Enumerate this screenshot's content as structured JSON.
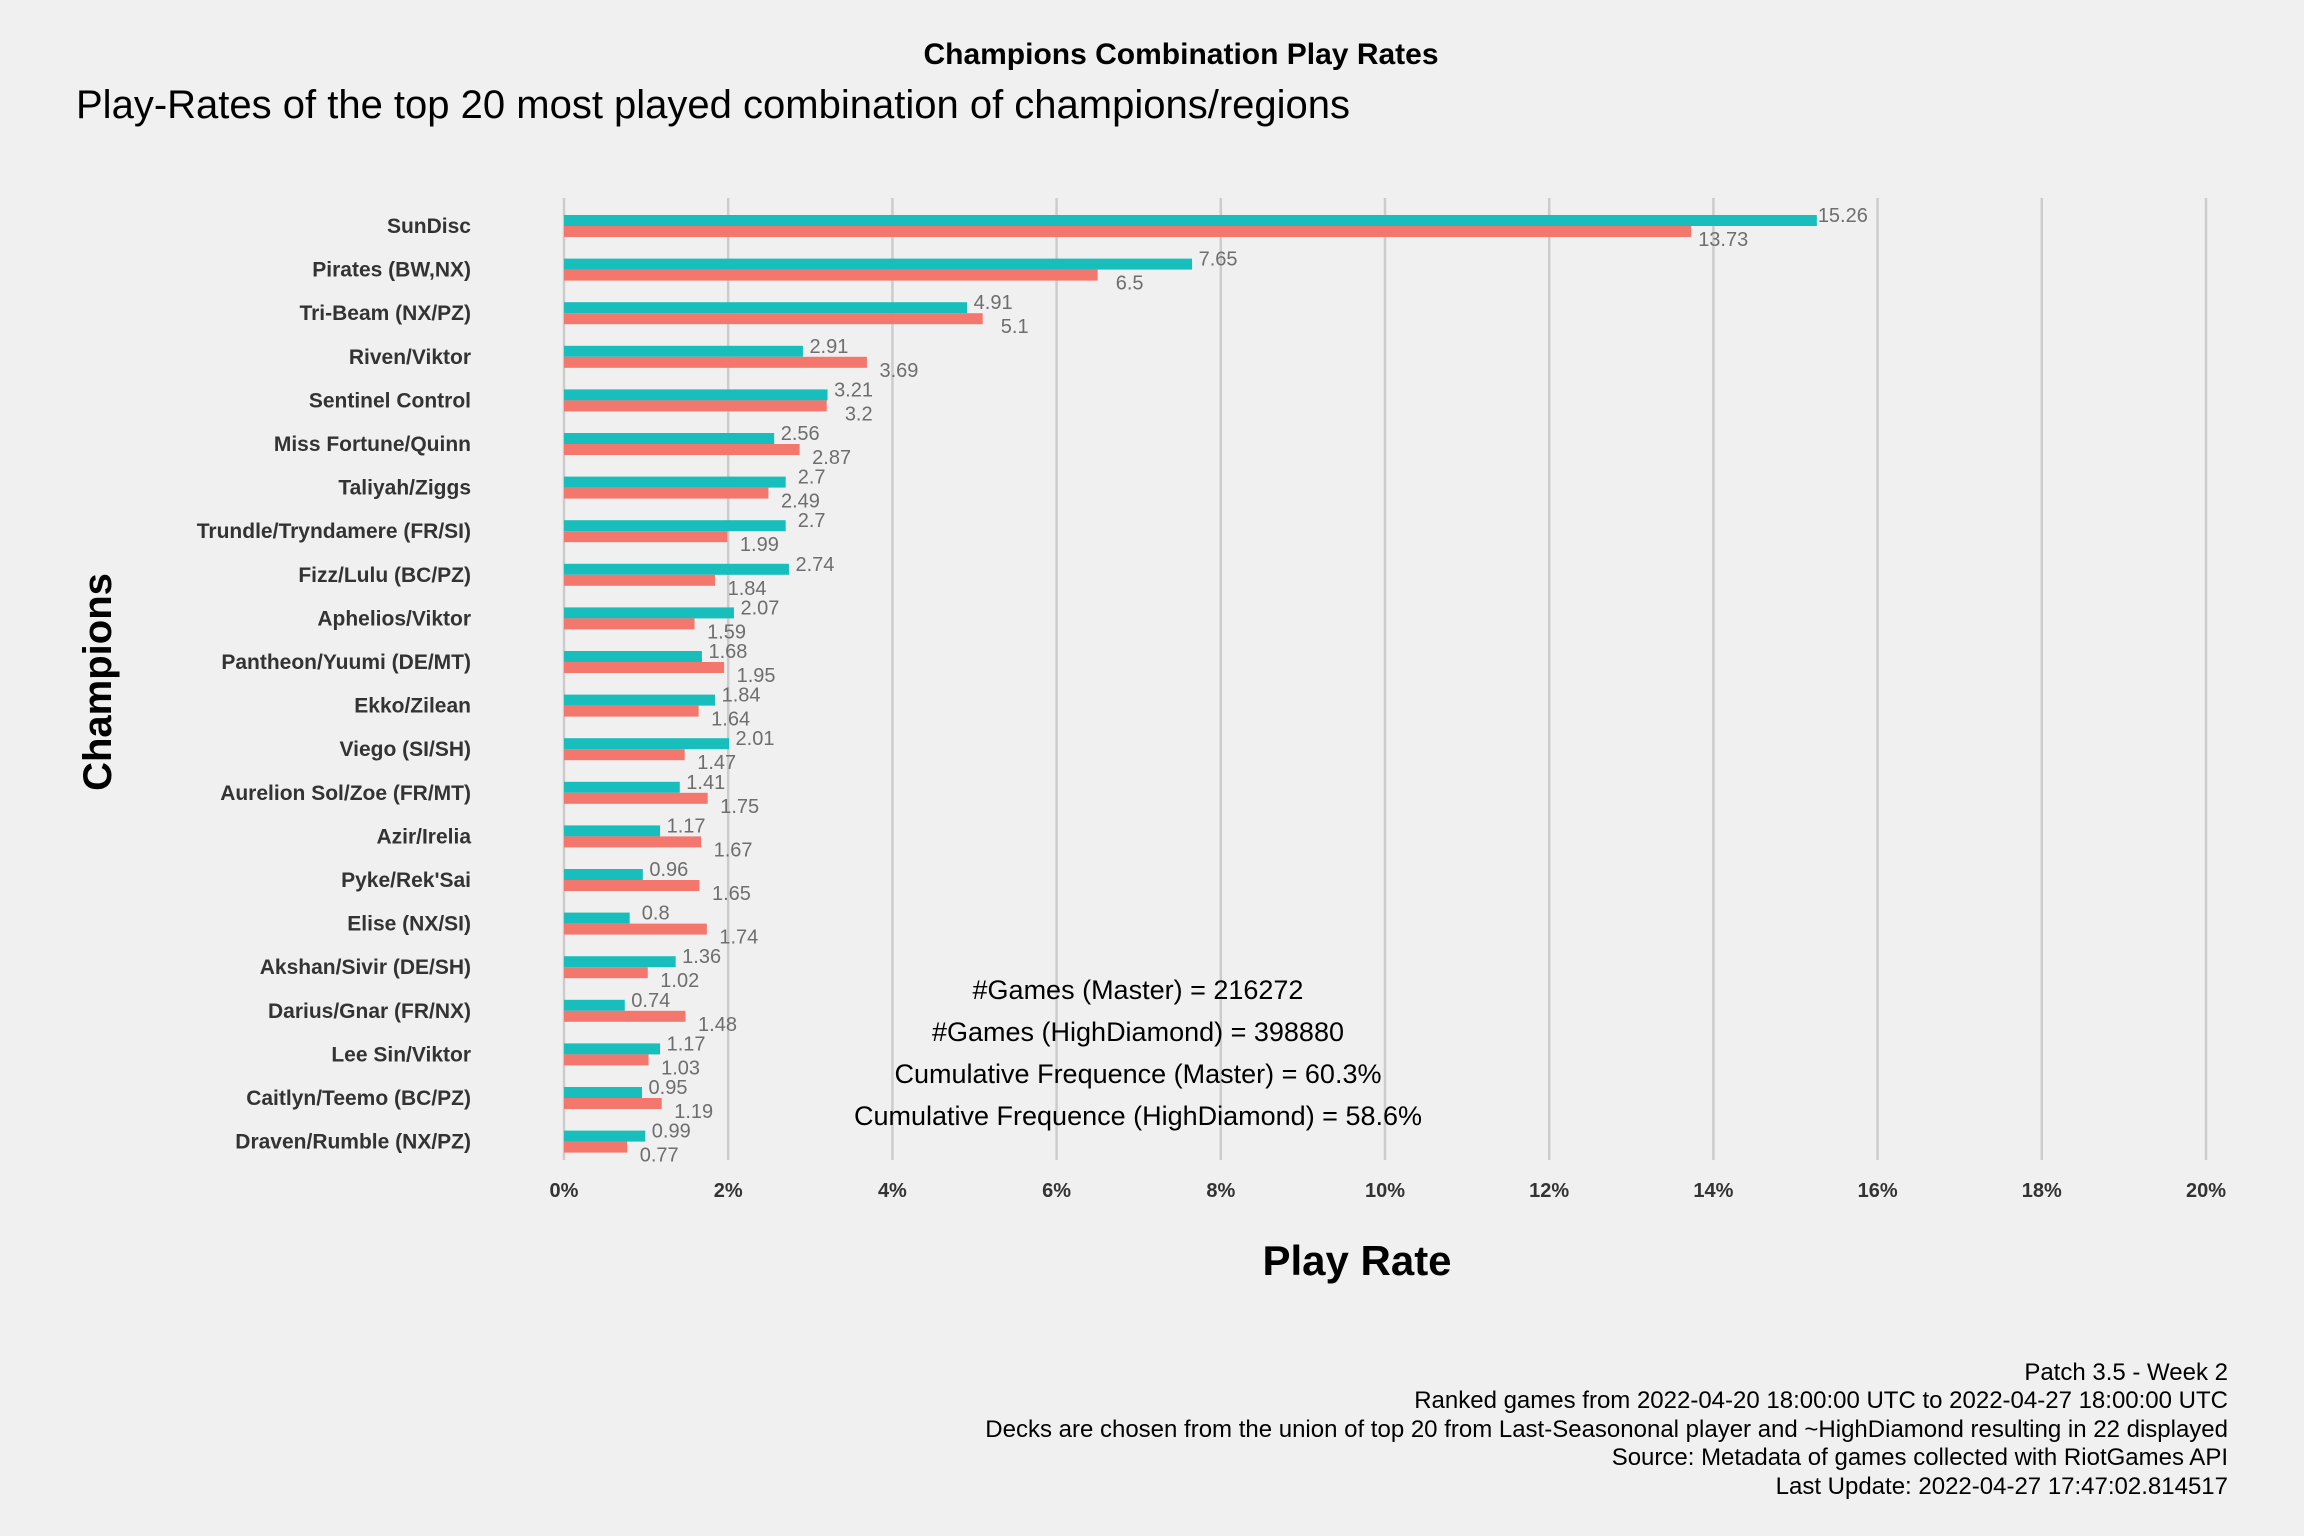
{
  "chart_data": {
    "type": "bar",
    "orientation": "horizontal",
    "title": "Champions Combination Play Rates",
    "subtitle": "Play-Rates of the top 20 most played combination of champions/regions",
    "xlabel": "Play Rate",
    "ylabel": "Champions",
    "xlim": [
      0,
      20
    ],
    "xticks": [
      "0%",
      "2%",
      "4%",
      "6%",
      "8%",
      "10%",
      "12%",
      "14%",
      "16%",
      "18%",
      "20%"
    ],
    "grid": true,
    "legend": "none",
    "categories": [
      "SunDisc",
      "Pirates (BW,NX)",
      "Tri-Beam (NX/PZ)",
      "Riven/Viktor",
      "Sentinel Control",
      "Miss Fortune/Quinn",
      "Taliyah/Ziggs",
      "Trundle/Tryndamere (FR/SI)",
      "Fizz/Lulu (BC/PZ)",
      "Aphelios/Viktor",
      "Pantheon/Yuumi (DE/MT)",
      "Ekko/Zilean",
      "Viego (SI/SH)",
      "Aurelion Sol/Zoe (FR/MT)",
      "Azir/Irelia",
      "Pyke/Rek'Sai",
      "Elise (NX/SI)",
      "Akshan/Sivir (DE/SH)",
      "Darius/Gnar (FR/NX)",
      "Lee Sin/Viktor",
      "Caitlyn/Teemo (BC/PZ)",
      "Draven/Rumble (NX/PZ)"
    ],
    "series": [
      {
        "color": "#17bebb",
        "values": [
          15.26,
          7.65,
          4.91,
          2.91,
          3.21,
          2.56,
          2.7,
          2.7,
          2.74,
          2.07,
          1.68,
          1.84,
          2.01,
          1.41,
          1.17,
          0.96,
          0.8,
          1.36,
          0.74,
          1.17,
          0.95,
          0.99
        ],
        "labels": [
          "15.26",
          "7.65",
          "4.91",
          "2.91",
          "3.21",
          "2.56",
          "2.7",
          "2.7",
          "2.74",
          "2.07",
          "1.68",
          "1.84",
          "2.01",
          "1.41",
          "1.17",
          "0.96",
          "0.8",
          "1.36",
          "0.74",
          "1.17",
          "0.95",
          "0.99"
        ]
      },
      {
        "color": "#f4776e",
        "values": [
          13.73,
          6.5,
          5.1,
          3.69,
          3.2,
          2.87,
          2.49,
          1.99,
          1.84,
          1.59,
          1.95,
          1.64,
          1.47,
          1.75,
          1.67,
          1.65,
          1.74,
          1.02,
          1.48,
          1.03,
          1.19,
          0.77
        ],
        "labels": [
          "13.73",
          "6.5",
          "5.1",
          "3.69",
          "3.2",
          "2.87",
          "2.49",
          "1.99",
          "1.84",
          "1.59",
          "1.95",
          "1.64",
          "1.47",
          "1.75",
          "1.67",
          "1.65",
          "1.74",
          "1.02",
          "1.48",
          "1.03",
          "1.19",
          "0.77"
        ]
      }
    ],
    "annotations": [
      "#Games (Master) = 216272",
      "#Games (HighDiamond) = 398880",
      "Cumulative Frequence (Master) = 60.3%",
      "Cumulative Frequence (HighDiamond) = 58.6%"
    ],
    "caption": [
      "Patch 3.5 - Week 2",
      "Ranked games from 2022-04-20 18:00:00 UTC to 2022-04-27 18:00:00 UTC",
      "Decks are chosen from the union of top 20 from Last-Seasononal player and ~HighDiamond resulting in 22 displayed",
      "Source: Metadata of games collected with RiotGames API",
      "Last Update: 2022-04-27 17:47:02.814517"
    ],
    "colors": {
      "background": "#f0f0f0",
      "grid": "#cccccc",
      "value_label": "#6e6e6e"
    }
  }
}
